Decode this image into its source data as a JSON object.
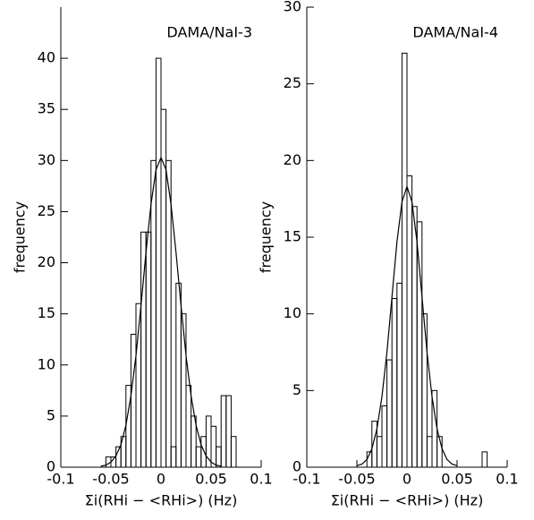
{
  "chart_data": [
    {
      "type": "histogram",
      "title": "DAMA/NaI-3",
      "xlabel": "Σi(RHi − <RHi>) (Hz)",
      "ylabel": "frequency",
      "bins": [
        -0.06,
        -0.055,
        -0.05,
        -0.045,
        -0.04,
        -0.035,
        -0.03,
        -0.025,
        -0.02,
        -0.015,
        -0.01,
        -0.005,
        0,
        0.005,
        0.01,
        0.015,
        0.02,
        0.025,
        0.03,
        0.035,
        0.04,
        0.045,
        0.05,
        0.055,
        0.06,
        0.065,
        0.07,
        0.075,
        0.08
      ],
      "values": [
        0,
        1,
        1,
        2,
        3,
        8,
        13,
        16,
        23,
        23,
        30,
        40,
        35,
        30,
        2,
        18,
        15,
        8,
        5,
        2,
        3,
        5,
        4,
        2,
        7,
        7,
        3,
        0
      ],
      "curve": {
        "x": [
          -0.06,
          -0.055,
          -0.05,
          -0.045,
          -0.04,
          -0.035,
          -0.03,
          -0.025,
          -0.02,
          -0.015,
          -0.01,
          -0.005,
          0,
          0.005,
          0.01,
          0.015,
          0.02,
          0.025,
          0.03,
          0.035,
          0.04,
          0.045,
          0.05,
          0.055,
          0.06
        ],
        "values": [
          0.1,
          0.2,
          0.5,
          1.1,
          2.2,
          4.1,
          7.0,
          10.9,
          15.8,
          21.0,
          25.7,
          29.1,
          30.3,
          29.1,
          25.7,
          21.0,
          15.8,
          10.9,
          7.0,
          4.1,
          2.2,
          1.1,
          0.5,
          0.2,
          0.1
        ]
      },
      "xlim": [
        -0.1,
        0.1
      ],
      "xticks": [
        -0.1,
        -0.05,
        0,
        0.05,
        0.1
      ],
      "ylim": [
        0,
        45
      ],
      "yticks": [
        0,
        5,
        10,
        15,
        20,
        25,
        30,
        35,
        40
      ],
      "color": "#000000"
    },
    {
      "type": "histogram",
      "title": "DAMA/NaI-4",
      "xlabel": "Σi(RHi − <RHi>) (Hz)",
      "ylabel": "frequency",
      "bins": [
        -0.04,
        -0.035,
        -0.03,
        -0.025,
        -0.02,
        -0.015,
        -0.01,
        -0.005,
        0,
        0.005,
        0.01,
        0.015,
        0.02,
        0.025,
        0.03,
        0.035,
        0.04,
        0.045,
        0.05,
        0.055,
        0.06,
        0.065,
        0.07,
        0.075,
        0.08
      ],
      "values": [
        1,
        3,
        2,
        4,
        7,
        11,
        12,
        27,
        19,
        17,
        16,
        10,
        2,
        5,
        2,
        0,
        0,
        0,
        0,
        0,
        0,
        0,
        0,
        1
      ],
      "curve": {
        "x": [
          -0.05,
          -0.045,
          -0.04,
          -0.035,
          -0.03,
          -0.025,
          -0.02,
          -0.015,
          -0.01,
          -0.005,
          0,
          0.005,
          0.01,
          0.015,
          0.02,
          0.025,
          0.03,
          0.035,
          0.04,
          0.045,
          0.05
        ],
        "values": [
          0.1,
          0.2,
          0.5,
          1.2,
          2.5,
          4.6,
          7.5,
          11.1,
          14.7,
          17.3,
          18.3,
          17.3,
          14.7,
          11.1,
          7.5,
          4.6,
          2.5,
          1.2,
          0.5,
          0.2,
          0.1
        ]
      },
      "xlim": [
        -0.1,
        0.1
      ],
      "xticks": [
        -0.1,
        -0.05,
        0,
        0.05,
        0.1
      ],
      "ylim": [
        0,
        30
      ],
      "yticks": [
        0,
        5,
        10,
        15,
        20,
        25,
        30
      ],
      "color": "#000000"
    }
  ]
}
